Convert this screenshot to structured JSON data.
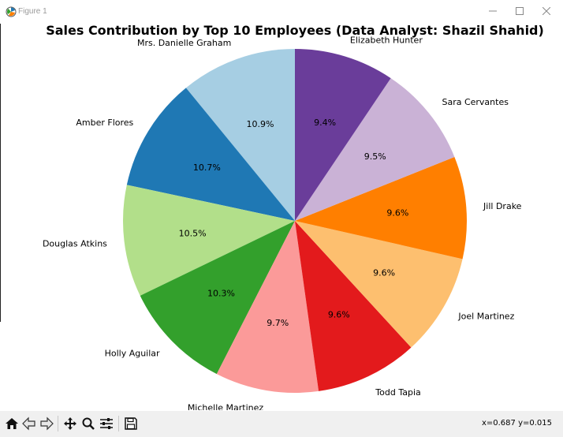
{
  "window": {
    "title": "Figure 1",
    "icons": {
      "app": "matplotlib-icon",
      "minimize": "minimize-icon",
      "maximize": "maximize-icon",
      "close": "close-icon"
    }
  },
  "toolbar": {
    "buttons": [
      {
        "name": "home-button",
        "icon": "home-icon"
      },
      {
        "name": "back-button",
        "icon": "back-arrow-icon"
      },
      {
        "name": "forward-button",
        "icon": "forward-arrow-icon"
      },
      {
        "name": "pan-button",
        "icon": "move-icon"
      },
      {
        "name": "zoom-button",
        "icon": "zoom-icon"
      },
      {
        "name": "configure-subplots-button",
        "icon": "sliders-icon"
      },
      {
        "name": "save-button",
        "icon": "save-icon"
      }
    ],
    "coordinates": "x=0.687 y=0.015"
  },
  "chart_data": {
    "type": "pie",
    "title": "Sales Contribution by Top 10 Employees (Data Analyst: Shazil Shahid)",
    "start_angle": 90,
    "direction": "counterclockwise",
    "legend": "none",
    "slices": [
      {
        "label": "Mrs. Danielle Graham",
        "value": 10.9,
        "pct_label": "10.9%",
        "color": "#a6cee3"
      },
      {
        "label": "Amber Flores",
        "value": 10.7,
        "pct_label": "10.7%",
        "color": "#1f78b4"
      },
      {
        "label": "Douglas Atkins",
        "value": 10.5,
        "pct_label": "10.5%",
        "color": "#b2df8a"
      },
      {
        "label": "Holly Aguilar",
        "value": 10.3,
        "pct_label": "10.3%",
        "color": "#33a02c"
      },
      {
        "label": "Michelle Martinez",
        "value": 9.7,
        "pct_label": "9.7%",
        "color": "#fb9a99"
      },
      {
        "label": "Todd Tapia",
        "value": 9.6,
        "pct_label": "9.6%",
        "color": "#e31a1c"
      },
      {
        "label": "Joel Martinez",
        "value": 9.6,
        "pct_label": "9.6%",
        "color": "#fdbf6f"
      },
      {
        "label": "Jill Drake",
        "value": 9.6,
        "pct_label": "9.6%",
        "color": "#ff7f00"
      },
      {
        "label": "Sara Cervantes",
        "value": 9.5,
        "pct_label": "9.5%",
        "color": "#cab2d6"
      },
      {
        "label": "Elizabeth Hunter",
        "value": 9.4,
        "pct_label": "9.4%",
        "color": "#6a3d9a"
      }
    ]
  }
}
